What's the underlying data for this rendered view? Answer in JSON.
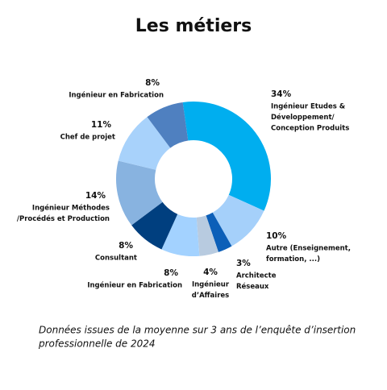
{
  "chart_data": {
    "type": "donut",
    "title": "Les métiers",
    "categories": [
      [
        "Ingénieur Etudes &",
        "Développement/",
        "Conception Produits"
      ],
      [
        "Autre (Enseignement,",
        "formation, ...)"
      ],
      [
        "Architecte",
        "Réseaux"
      ],
      [
        "Ingénieur",
        "d’Affaires"
      ],
      [
        "Ingénieur en Fabrication"
      ],
      [
        "Consultant"
      ],
      [
        "Ingénieur Méthodes",
        "/Procédés et Production"
      ],
      [
        "Chef de projet"
      ],
      [
        "Ingénieur en Fabrication"
      ]
    ],
    "values": [
      34,
      10,
      3,
      4,
      8,
      8,
      14,
      11,
      8
    ],
    "value_labels": [
      "34%",
      "10%",
      "3%",
      "4%",
      "8%",
      "8%",
      "14%",
      "11%",
      "8%"
    ],
    "colors": [
      "#00aeef",
      "#a5d0fa",
      "#0c5fb8",
      "#b8cbe0",
      "#a3d2ff",
      "#003f7f",
      "#88b3e0",
      "#a8d2fb",
      "#4f80c0"
    ],
    "note": [
      "Données issues de la moyenne sur 3 ans de l’enquête d’insertion",
      "professionnelle de 2024"
    ]
  }
}
